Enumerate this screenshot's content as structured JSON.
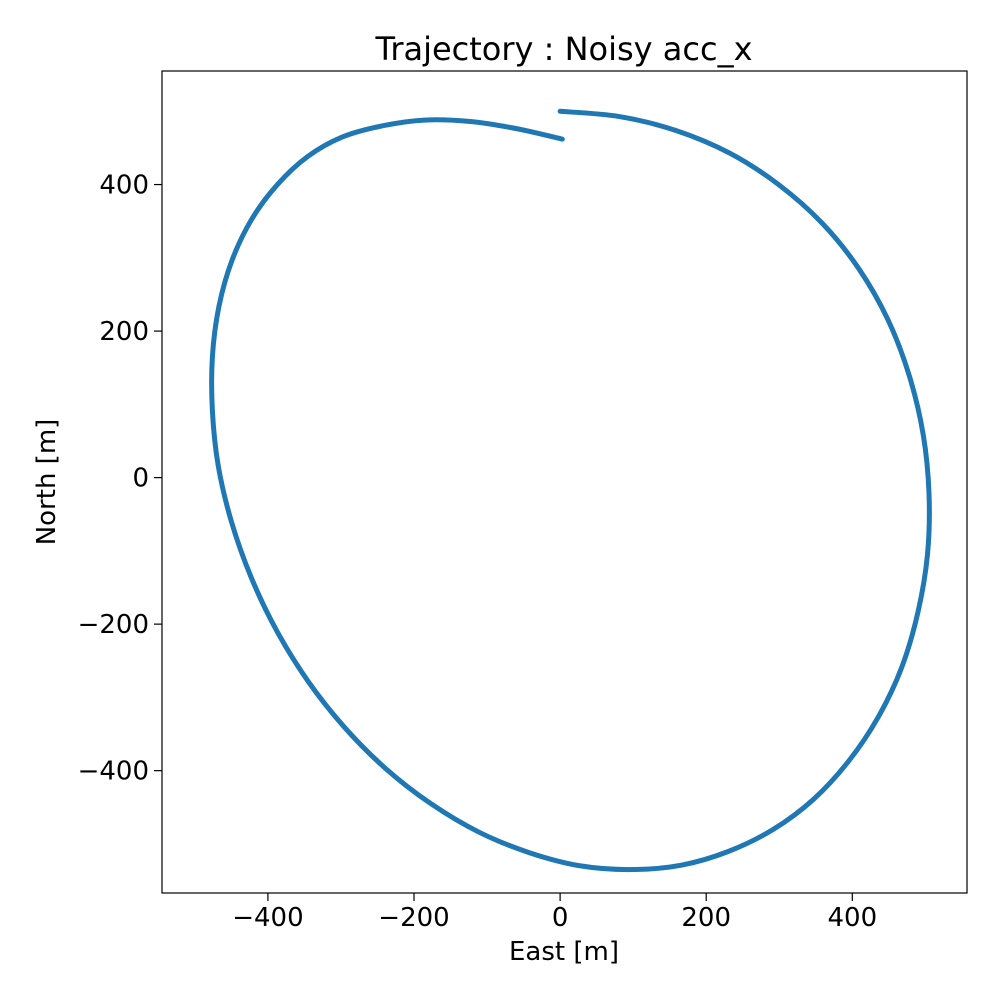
{
  "chart_data": {
    "type": "line",
    "title": "Trajectory : Noisy acc_x",
    "xlabel": "East [m]",
    "ylabel": "North [m]",
    "xlim": [
      -545,
      557
    ],
    "ylim": [
      -567,
      555
    ],
    "xticks": [
      -400,
      -200,
      0,
      200,
      400
    ],
    "yticks": [
      -400,
      -200,
      0,
      200,
      400
    ],
    "xtick_labels": [
      "−400",
      "−200",
      "0",
      "200",
      "400"
    ],
    "ytick_labels": [
      "−400",
      "−200",
      "0",
      "200",
      "400"
    ],
    "grid": false,
    "series": [
      {
        "color": "#1f77b4",
        "x": [
          0,
          80,
          158,
          232,
          299,
          359,
          409,
          449,
          478,
          497,
          505,
          503,
          490,
          468,
          436,
          395,
          347,
          292,
          231,
          166,
          98,
          28,
          -42,
          -111,
          -177,
          -239,
          -295,
          -345,
          -388,
          -423,
          -450,
          -468,
          -476,
          -476,
          -467,
          -449,
          -422,
          -387,
          -346,
          -298,
          -244,
          -186,
          -123,
          -58,
          3
        ],
        "y": [
          500,
          493,
          474,
          443,
          400,
          347,
          285,
          215,
          139,
          59,
          -22,
          -104,
          -183,
          -258,
          -326,
          -387,
          -439,
          -480,
          -510,
          -529,
          -535,
          -530,
          -512,
          -484,
          -445,
          -397,
          -341,
          -278,
          -209,
          -136,
          -60,
          16,
          91,
          165,
          234,
          297,
          353,
          400,
          438,
          465,
          480,
          488,
          486,
          476,
          462
        ]
      }
    ]
  }
}
